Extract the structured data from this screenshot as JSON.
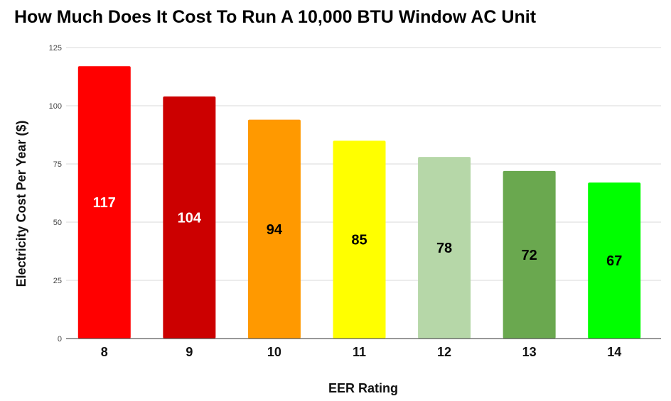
{
  "chart_data": {
    "type": "bar",
    "title": "How Much Does It Cost To Run A 10,000 BTU Window AC Unit",
    "xlabel": "EER Rating",
    "ylabel": "Electricity Cost Per Year ($)",
    "categories": [
      "8",
      "9",
      "10",
      "11",
      "12",
      "13",
      "14"
    ],
    "values": [
      117,
      104,
      94,
      85,
      78,
      72,
      67
    ],
    "data_labels": [
      "117",
      "104",
      "94",
      "85",
      "78",
      "72",
      "67"
    ],
    "bar_colors": [
      "#ff0000",
      "#cc0000",
      "#ff9900",
      "#ffff00",
      "#b6d7a8",
      "#6aa84f",
      "#00ff00"
    ],
    "label_colors": [
      "#ffffff",
      "#ffffff",
      "#000000",
      "#000000",
      "#000000",
      "#000000",
      "#000000"
    ],
    "ylim": [
      0,
      125
    ],
    "yticks": [
      "0",
      "25",
      "50",
      "75",
      "100",
      "125"
    ],
    "grid": true,
    "legend": "none"
  }
}
